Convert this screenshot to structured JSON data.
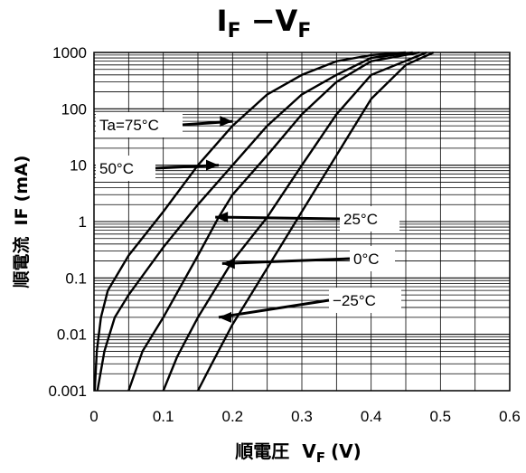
{
  "chart_data": {
    "type": "line",
    "title": {
      "main": "I",
      "main_sub": "F",
      "sep": " −V",
      "sep_sub": "F"
    },
    "xlabel": {
      "prefix": "順電圧",
      "sym": "V",
      "sub": "F",
      "unit": "(V)"
    },
    "ylabel": {
      "prefix": "順電流",
      "sym": "IF",
      "unit": "(mA)"
    },
    "xlim": [
      0,
      0.6
    ],
    "ylim": [
      0.001,
      1000
    ],
    "y_scale": "log",
    "grid": true,
    "x_ticks": [
      "0",
      "0.1",
      "0.2",
      "0.3",
      "0.4",
      "0.5",
      "0.6"
    ],
    "y_ticks": [
      "0.001",
      "0.01",
      "0.1",
      "1",
      "10",
      "100",
      "1000"
    ],
    "series": [
      {
        "label": "Ta=75°C",
        "x": [
          0.001,
          0.004,
          0.01,
          0.02,
          0.05,
          0.1,
          0.15,
          0.2,
          0.25,
          0.3,
          0.35,
          0.4,
          0.45
        ],
        "y": [
          0.001,
          0.005,
          0.02,
          0.06,
          0.25,
          1.5,
          10,
          50,
          180,
          400,
          700,
          900,
          1000
        ]
      },
      {
        "label": "50°C",
        "x": [
          0.005,
          0.015,
          0.03,
          0.05,
          0.1,
          0.15,
          0.2,
          0.25,
          0.3,
          0.35,
          0.4,
          0.46
        ],
        "y": [
          0.001,
          0.005,
          0.02,
          0.05,
          0.35,
          2,
          10,
          50,
          180,
          400,
          800,
          1000
        ]
      },
      {
        "label": "25°C",
        "x": [
          0.05,
          0.07,
          0.1,
          0.15,
          0.18,
          0.2,
          0.25,
          0.3,
          0.35,
          0.4,
          0.47
        ],
        "y": [
          0.001,
          0.005,
          0.02,
          0.25,
          1.2,
          3,
          15,
          80,
          300,
          700,
          1000
        ]
      },
      {
        "label": "0°C",
        "x": [
          0.1,
          0.12,
          0.15,
          0.2,
          0.25,
          0.3,
          0.35,
          0.4,
          0.48
        ],
        "y": [
          0.001,
          0.004,
          0.02,
          0.2,
          1.2,
          10,
          80,
          400,
          1000
        ]
      },
      {
        "label": "−25°C",
        "x": [
          0.15,
          0.17,
          0.2,
          0.25,
          0.3,
          0.35,
          0.4,
          0.45,
          0.49
        ],
        "y": [
          0.001,
          0.003,
          0.015,
          0.15,
          1.5,
          15,
          150,
          600,
          1000
        ]
      }
    ],
    "annotations": [
      {
        "text": "Ta=75°C",
        "arrow_to": [
          0.2,
          60
        ]
      },
      {
        "text": "50°C",
        "arrow_to": [
          0.18,
          10
        ]
      },
      {
        "text": "25°C",
        "arrow_to": [
          0.175,
          1.2
        ]
      },
      {
        "text": "0°C",
        "arrow_to": [
          0.185,
          0.18
        ]
      },
      {
        "text": "−25°C",
        "arrow_to": [
          0.18,
          0.02
        ]
      }
    ]
  }
}
